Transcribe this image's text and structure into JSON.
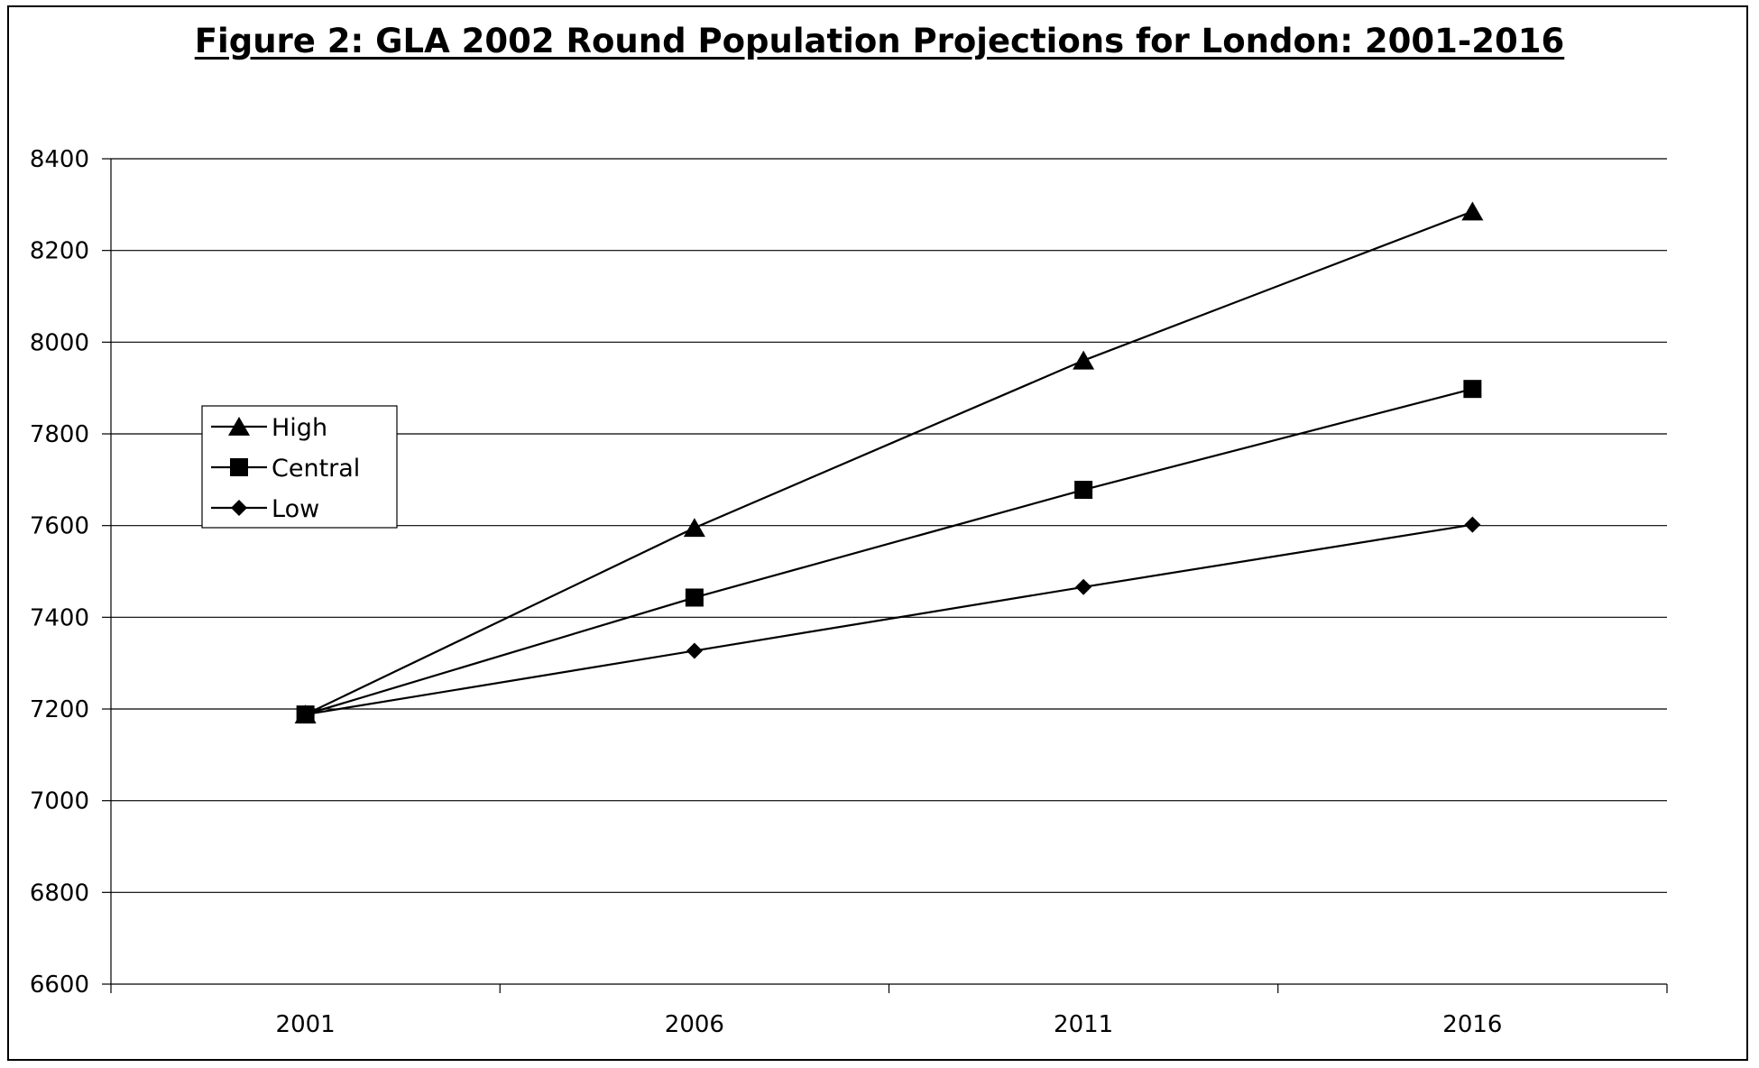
{
  "chart_data": {
    "type": "line",
    "title": "Figure 2: GLA 2002 Round Population Projections for London: 2001-2016",
    "xlabel": "",
    "ylabel": "",
    "categories": [
      "2001",
      "2006",
      "2011",
      "2016"
    ],
    "ylim": [
      6600,
      8400
    ],
    "yticks": [
      6600,
      6800,
      7000,
      7200,
      7400,
      7600,
      7800,
      8000,
      8200,
      8400
    ],
    "grid": true,
    "legend": "left",
    "series": [
      {
        "name": "High",
        "marker": "triangle",
        "values": [
          7188,
          7595,
          7960,
          8285
        ]
      },
      {
        "name": "Central",
        "marker": "square",
        "values": [
          7188,
          7443,
          7678,
          7898
        ]
      },
      {
        "name": "Low",
        "marker": "diamond",
        "values": [
          7188,
          7327,
          7466,
          7602
        ]
      }
    ],
    "colors": {
      "line": "#000000",
      "grid": "#000000",
      "background": "#ffffff"
    }
  }
}
